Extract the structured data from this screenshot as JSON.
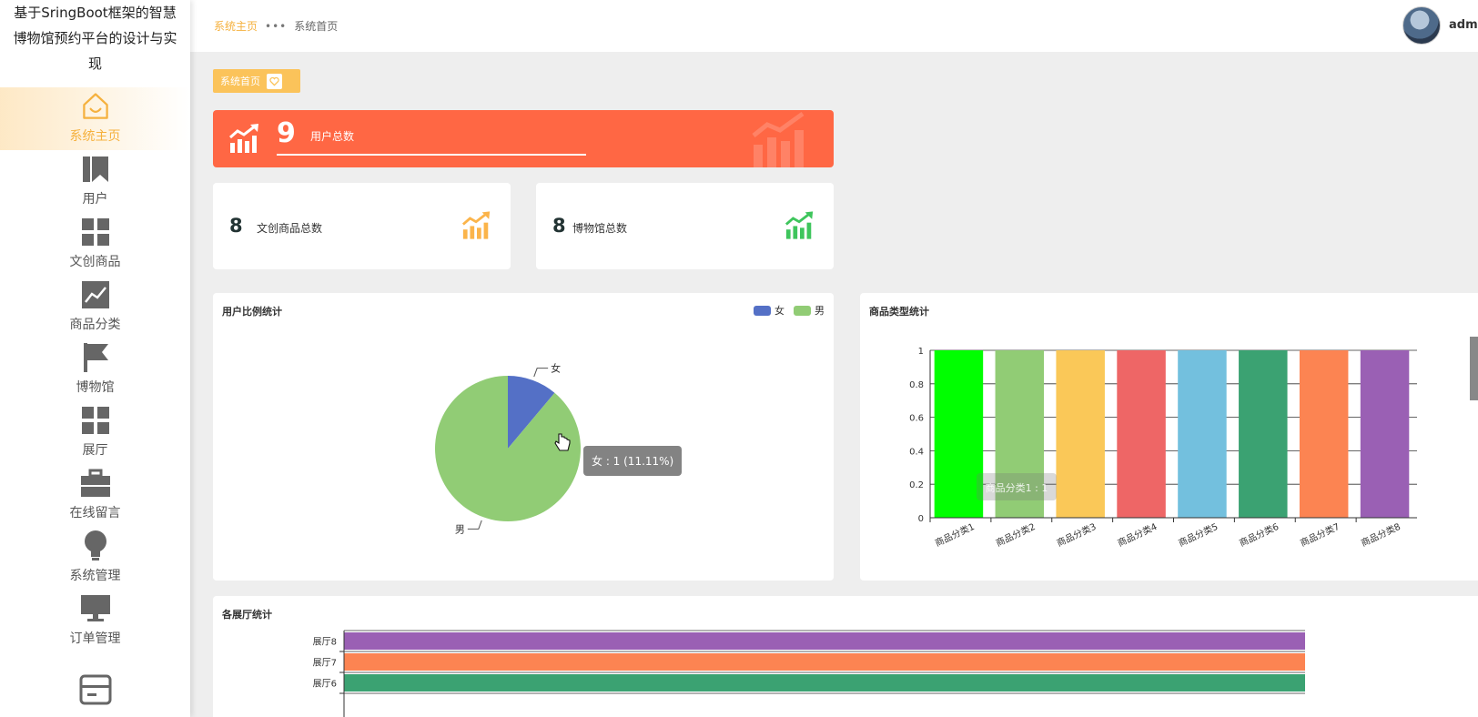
{
  "app": {
    "title": "基于SringBoot框架的智慧博物馆预约平台的设计与实现"
  },
  "header": {
    "breadcrumb": {
      "current": "系统主页",
      "page": "系统首页"
    },
    "user": "admin"
  },
  "sidebar": {
    "items": [
      {
        "label": "系统主页",
        "icon": "home-icon",
        "active": true
      },
      {
        "label": "用户",
        "icon": "bookmark-icon"
      },
      {
        "label": "文创商品",
        "icon": "grid-icon"
      },
      {
        "label": "商品分类",
        "icon": "trend-chart-icon"
      },
      {
        "label": "博物馆",
        "icon": "flag-icon"
      },
      {
        "label": "展厅",
        "icon": "grid-icon"
      },
      {
        "label": "在线留言",
        "icon": "briefcase-icon"
      },
      {
        "label": "系统管理",
        "icon": "lightbulb-icon"
      },
      {
        "label": "订单管理",
        "icon": "monitor-icon"
      },
      {
        "label": "",
        "icon": "card-icon"
      }
    ]
  },
  "tag": {
    "label": "系统首页"
  },
  "stats": {
    "users": {
      "value": "9",
      "label": "用户总数"
    },
    "products": {
      "value": "8",
      "label": "文创商品总数"
    },
    "museums": {
      "value": "8",
      "label": "博物馆总数"
    }
  },
  "colors": {
    "accent": "#f5b13e",
    "total_card": "#ff6744",
    "products_icon": "#fbb44a",
    "museums_icon": "#3ec55c"
  },
  "chart_data": [
    {
      "type": "pie",
      "title": "用户比例统计",
      "legend": {
        "position": "top-right"
      },
      "slices": [
        {
          "name": "女",
          "value": 1,
          "color": "#5470c6"
        },
        {
          "name": "男",
          "value": 8,
          "color": "#91cc75"
        }
      ],
      "tooltip": "女 : 1 (11.11%)"
    },
    {
      "type": "bar",
      "title": "商品类型统计",
      "categories": [
        "商品分类1",
        "商品分类2",
        "商品分类3",
        "商品分类4",
        "商品分类5",
        "商品分类6",
        "商品分类7",
        "商品分类8"
      ],
      "values": [
        1,
        1,
        1,
        1,
        1,
        1,
        1,
        1
      ],
      "colors": [
        "#00ff00",
        "#91cc75",
        "#fac858",
        "#ee6666",
        "#73c0de",
        "#3ba272",
        "#fc8452",
        "#9a60b4"
      ],
      "yticks": [
        "0",
        "0.2",
        "0.4",
        "0.6",
        "0.8",
        "1"
      ],
      "ylim": [
        0,
        1
      ],
      "tooltip": "商品分类1 : 1",
      "grid": true
    },
    {
      "type": "bar",
      "orientation": "horizontal",
      "title": "各展厅统计",
      "categories": [
        "展厅8",
        "展厅7",
        "展厅6"
      ],
      "values": [
        1,
        1,
        1
      ],
      "colors": [
        "#9a60b4",
        "#fc8452",
        "#3ba272"
      ]
    }
  ]
}
